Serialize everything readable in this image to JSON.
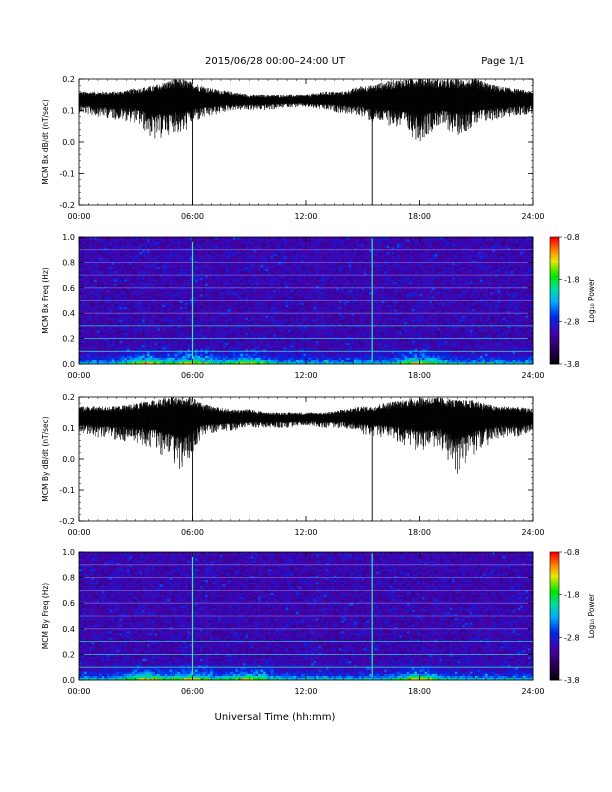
{
  "header": {
    "title": "2015/06/28  00:00–24:00 UT",
    "page": "Page 1/1"
  },
  "footer": {
    "xlabel": "Universal Time (hh:mm)"
  },
  "chart_data": [
    {
      "type": "line",
      "ylabel": "MCM Bx dB/dt (nT/sec)",
      "xlim": [
        0,
        24
      ],
      "ylim": [
        -0.2,
        0.2
      ],
      "x_ticks": [
        "00:00",
        "06:00",
        "12:00",
        "18:00",
        "24:00"
      ],
      "y_ticks": [
        "0.2",
        "0.1",
        "0.0",
        "-0.1",
        "-0.2"
      ],
      "baseline": 0.13,
      "spikes": [
        {
          "x": 6.0,
          "y": -0.2
        },
        {
          "x": 15.5,
          "y": -0.2
        }
      ],
      "envelope": {
        "x": [
          0,
          1,
          2,
          3,
          4,
          5,
          5.5,
          6,
          6.5,
          7,
          8,
          9,
          10,
          11,
          12,
          13,
          14,
          15,
          15.5,
          16,
          17,
          18,
          19,
          20,
          21,
          22,
          23,
          24
        ],
        "upper": [
          0.16,
          0.16,
          0.16,
          0.17,
          0.18,
          0.2,
          0.2,
          0.19,
          0.18,
          0.17,
          0.16,
          0.15,
          0.15,
          0.15,
          0.15,
          0.16,
          0.16,
          0.18,
          0.18,
          0.19,
          0.2,
          0.21,
          0.2,
          0.2,
          0.2,
          0.18,
          0.17,
          0.16
        ],
        "lower": [
          0.09,
          0.08,
          0.07,
          0.06,
          0.0,
          0.03,
          0.02,
          0.06,
          0.07,
          0.08,
          0.1,
          0.1,
          0.1,
          0.11,
          0.11,
          0.1,
          0.09,
          0.08,
          0.06,
          0.06,
          0.04,
          0.0,
          0.05,
          0.02,
          0.05,
          0.07,
          0.08,
          0.09
        ]
      }
    },
    {
      "type": "heatmap",
      "ylabel": "MCM Bx Freq (Hz)",
      "xlim": [
        0,
        24
      ],
      "ylim": [
        0.0,
        1.0
      ],
      "x_ticks": [
        "00:00",
        "06:00",
        "12:00",
        "18:00",
        "24:00"
      ],
      "y_ticks": [
        "1.0",
        "0.8",
        "0.6",
        "0.4",
        "0.2",
        "0.0"
      ],
      "colorbar": {
        "label": "Log₁₀ Power",
        "range": [
          -3.8,
          -0.8
        ],
        "ticks": [
          "-0.8",
          "-1.8",
          "-2.8",
          "-3.8"
        ]
      },
      "harmonic_lines_hz": [
        0.1,
        0.2,
        0.3,
        0.4,
        0.5,
        0.6,
        0.7,
        0.8,
        0.9
      ],
      "vertical_lines_hour": [
        6.0,
        15.5
      ],
      "low_freq_activity_hours": [
        3.5,
        6.0,
        9.0,
        18.0
      ]
    },
    {
      "type": "line",
      "ylabel": "MCM By dB/dt (nT/sec)",
      "xlim": [
        0,
        24
      ],
      "ylim": [
        -0.2,
        0.2
      ],
      "x_ticks": [
        "00:00",
        "06:00",
        "12:00",
        "18:00",
        "24:00"
      ],
      "y_ticks": [
        "0.2",
        "0.1",
        "0.0",
        "-0.1",
        "-0.2"
      ],
      "baseline": 0.13,
      "spikes": [
        {
          "x": 6.0,
          "y": -0.2
        },
        {
          "x": 15.5,
          "y": -0.2
        }
      ],
      "envelope": {
        "x": [
          0,
          1,
          2,
          3,
          4,
          5,
          5.5,
          6,
          6.5,
          7,
          8,
          9,
          10,
          11,
          12,
          13,
          14,
          15,
          15.5,
          16,
          17,
          18,
          19,
          20,
          21,
          22,
          23,
          24
        ],
        "upper": [
          0.17,
          0.17,
          0.17,
          0.18,
          0.19,
          0.2,
          0.2,
          0.2,
          0.18,
          0.17,
          0.16,
          0.16,
          0.15,
          0.15,
          0.15,
          0.15,
          0.16,
          0.17,
          0.17,
          0.18,
          0.19,
          0.2,
          0.2,
          0.19,
          0.19,
          0.17,
          0.17,
          0.16
        ],
        "lower": [
          0.08,
          0.07,
          0.06,
          0.05,
          0.03,
          -0.02,
          -0.05,
          0.02,
          0.07,
          0.08,
          0.09,
          0.1,
          0.1,
          0.1,
          0.11,
          0.1,
          0.1,
          0.08,
          0.07,
          0.07,
          0.05,
          0.02,
          0.04,
          -0.05,
          0.02,
          0.06,
          0.07,
          0.08
        ]
      }
    },
    {
      "type": "heatmap",
      "ylabel": "MCM By Freq (Hz)",
      "xlim": [
        0,
        24
      ],
      "ylim": [
        0.0,
        1.0
      ],
      "x_ticks": [
        "00:00",
        "06:00",
        "12:00",
        "18:00",
        "24:00"
      ],
      "y_ticks": [
        "1.0",
        "0.8",
        "0.6",
        "0.4",
        "0.2",
        "0.0"
      ],
      "colorbar": {
        "label": "Log₁₀ Power",
        "range": [
          -3.8,
          -0.8
        ],
        "ticks": [
          "-0.8",
          "-1.8",
          "-2.8",
          "-3.8"
        ]
      },
      "harmonic_lines_hz": [
        0.1,
        0.2,
        0.3,
        0.4,
        0.5,
        0.6,
        0.7,
        0.8,
        0.9
      ],
      "vertical_lines_hour": [
        6.0,
        15.5
      ],
      "low_freq_activity_hours": [
        3.5,
        6.0,
        9.0,
        18.0
      ]
    }
  ],
  "colors": {
    "trace": "#000000",
    "axis": "#000000",
    "background": "#ffffff"
  }
}
